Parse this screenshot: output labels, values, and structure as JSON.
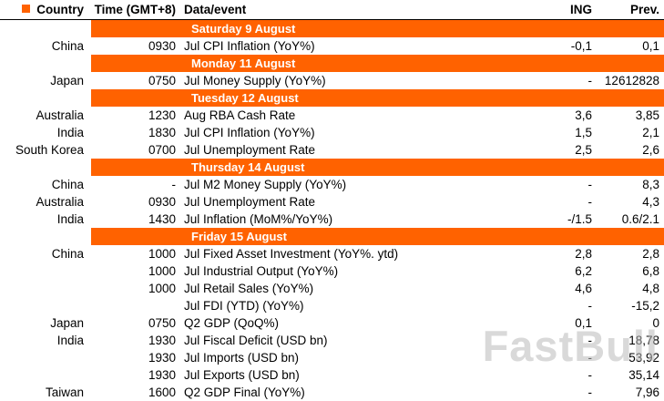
{
  "accent_color": "#FF6200",
  "watermark": "FastBull",
  "chart_data": {
    "type": "table",
    "columns": [
      "Country",
      "Time (GMT+8)",
      "Data/event",
      "ING",
      "Prev."
    ],
    "sections": [
      {
        "title": "Saturday 9 August",
        "rows": [
          {
            "country": "China",
            "time": "0930",
            "event": "Jul CPI Inflation (YoY%)",
            "ing": "-0,1",
            "prev": "0,1"
          }
        ]
      },
      {
        "title": "Monday 11 August",
        "rows": [
          {
            "country": "Japan",
            "time": "0750",
            "event": "Jul Money Supply (YoY%)",
            "ing": "-",
            "prev": "12612828"
          }
        ]
      },
      {
        "title": "Tuesday 12 August",
        "rows": [
          {
            "country": "Australia",
            "time": "1230",
            "event": "Aug RBA Cash Rate",
            "ing": "3,6",
            "prev": "3,85"
          },
          {
            "country": "India",
            "time": "1830",
            "event": "Jul CPI Inflation (YoY%)",
            "ing": "1,5",
            "prev": "2,1"
          },
          {
            "country": "South Korea",
            "time": "0700",
            "event": "Jul Unemployment Rate",
            "ing": "2,5",
            "prev": "2,6"
          }
        ]
      },
      {
        "title": "Thursday 14 August",
        "rows": [
          {
            "country": "China",
            "time": "-",
            "event": "Jul M2 Money Supply (YoY%)",
            "ing": "-",
            "prev": "8,3"
          },
          {
            "country": "Australia",
            "time": "0930",
            "event": "Jul Unemployment Rate",
            "ing": "-",
            "prev": "4,3"
          },
          {
            "country": "India",
            "time": "1430",
            "event": "Jul Inflation (MoM%/YoY%)",
            "ing": "-/1.5",
            "prev": "0.6/2.1"
          }
        ]
      },
      {
        "title": "Friday 15 August",
        "rows": [
          {
            "country": "China",
            "time": "1000",
            "event": "Jul Fixed Asset Investment (YoY%. ytd)",
            "ing": "2,8",
            "prev": "2,8"
          },
          {
            "country": "",
            "time": "1000",
            "event": "Jul Industrial Output (YoY%)",
            "ing": "6,2",
            "prev": "6,8"
          },
          {
            "country": "",
            "time": "1000",
            "event": "Jul Retail Sales (YoY%)",
            "ing": "4,6",
            "prev": "4,8"
          },
          {
            "country": "",
            "time": "",
            "event": "Jul FDI (YTD) (YoY%)",
            "ing": "-",
            "prev": "-15,2"
          },
          {
            "country": "Japan",
            "time": "0750",
            "event": "Q2 GDP (QoQ%)",
            "ing": "0,1",
            "prev": "0"
          },
          {
            "country": "India",
            "time": "1930",
            "event": "Jul Fiscal Deficit (USD bn)",
            "ing": "-",
            "prev": "18,78"
          },
          {
            "country": "",
            "time": "1930",
            "event": "Jul Imports (USD bn)",
            "ing": "-",
            "prev": "53,92"
          },
          {
            "country": "",
            "time": "1930",
            "event": "Jul Exports (USD bn)",
            "ing": "-",
            "prev": "35,14"
          },
          {
            "country": "Taiwan",
            "time": "1600",
            "event": "Q2 GDP Final (YoY%)",
            "ing": "-",
            "prev": "7,96"
          }
        ]
      }
    ]
  }
}
